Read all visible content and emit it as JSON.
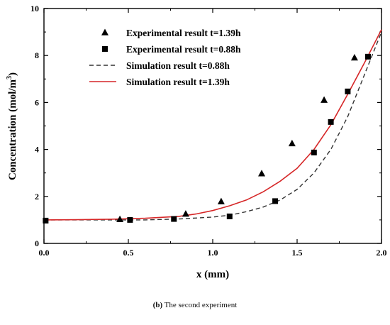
{
  "chart_data": {
    "type": "scatter",
    "xlabel": "x (mm)",
    "ylabel_main": "Concentration (mol/m",
    "ylabel_sup": "3",
    "ylabel_tail": ")",
    "xlim": [
      0.0,
      2.0
    ],
    "ylim": [
      0,
      10
    ],
    "x_ticks": [
      0.0,
      0.5,
      1.0,
      1.5,
      2.0
    ],
    "x_tick_labels": [
      "0.0",
      "0.5",
      "1.0",
      "1.5",
      "2.0"
    ],
    "y_ticks": [
      0,
      2,
      4,
      6,
      8,
      10
    ],
    "y_tick_labels": [
      "0",
      "2",
      "4",
      "6",
      "8",
      "10"
    ],
    "legend_position": "top-left",
    "grid": false,
    "series": [
      {
        "name": "Experimental result t=1.39h",
        "kind": "scatter",
        "marker": "triangle",
        "color": "#000000",
        "points": [
          [
            0.45,
            1.02
          ],
          [
            0.84,
            1.25
          ],
          [
            1.05,
            1.78
          ],
          [
            1.29,
            2.97
          ],
          [
            1.47,
            4.25
          ],
          [
            1.66,
            6.1
          ],
          [
            1.84,
            7.9
          ]
        ]
      },
      {
        "name": "Experimental result t=0.88h",
        "kind": "scatter",
        "marker": "square",
        "color": "#000000",
        "points": [
          [
            0.01,
            0.97
          ],
          [
            0.51,
            1.0
          ],
          [
            0.77,
            1.04
          ],
          [
            1.1,
            1.15
          ],
          [
            1.37,
            1.8
          ],
          [
            1.6,
            3.87
          ],
          [
            1.7,
            5.17
          ],
          [
            1.8,
            6.47
          ],
          [
            1.92,
            7.95
          ]
        ]
      },
      {
        "name": "Simulation result  t=0.88h",
        "kind": "line",
        "style": "dashed",
        "color": "#333333",
        "points": [
          [
            0.0,
            1.0
          ],
          [
            0.2,
            1.0
          ],
          [
            0.4,
            1.0
          ],
          [
            0.6,
            1.0
          ],
          [
            0.8,
            1.04
          ],
          [
            1.0,
            1.12
          ],
          [
            1.1,
            1.2
          ],
          [
            1.2,
            1.35
          ],
          [
            1.3,
            1.55
          ],
          [
            1.4,
            1.85
          ],
          [
            1.5,
            2.3
          ],
          [
            1.6,
            3.0
          ],
          [
            1.7,
            4.0
          ],
          [
            1.8,
            5.4
          ],
          [
            1.9,
            7.2
          ],
          [
            2.0,
            9.0
          ]
        ]
      },
      {
        "name": "Simulation result  t=1.39h",
        "kind": "line",
        "style": "solid",
        "color": "#d62728",
        "points": [
          [
            0.0,
            1.0
          ],
          [
            0.2,
            1.01
          ],
          [
            0.4,
            1.03
          ],
          [
            0.6,
            1.07
          ],
          [
            0.8,
            1.15
          ],
          [
            0.9,
            1.25
          ],
          [
            1.0,
            1.4
          ],
          [
            1.1,
            1.6
          ],
          [
            1.2,
            1.85
          ],
          [
            1.3,
            2.2
          ],
          [
            1.4,
            2.65
          ],
          [
            1.5,
            3.2
          ],
          [
            1.6,
            4.0
          ],
          [
            1.7,
            5.05
          ],
          [
            1.8,
            6.35
          ],
          [
            1.9,
            7.7
          ],
          [
            2.0,
            9.1
          ]
        ]
      }
    ]
  },
  "caption": {
    "label": "(b)",
    "text": " The second experiment"
  }
}
